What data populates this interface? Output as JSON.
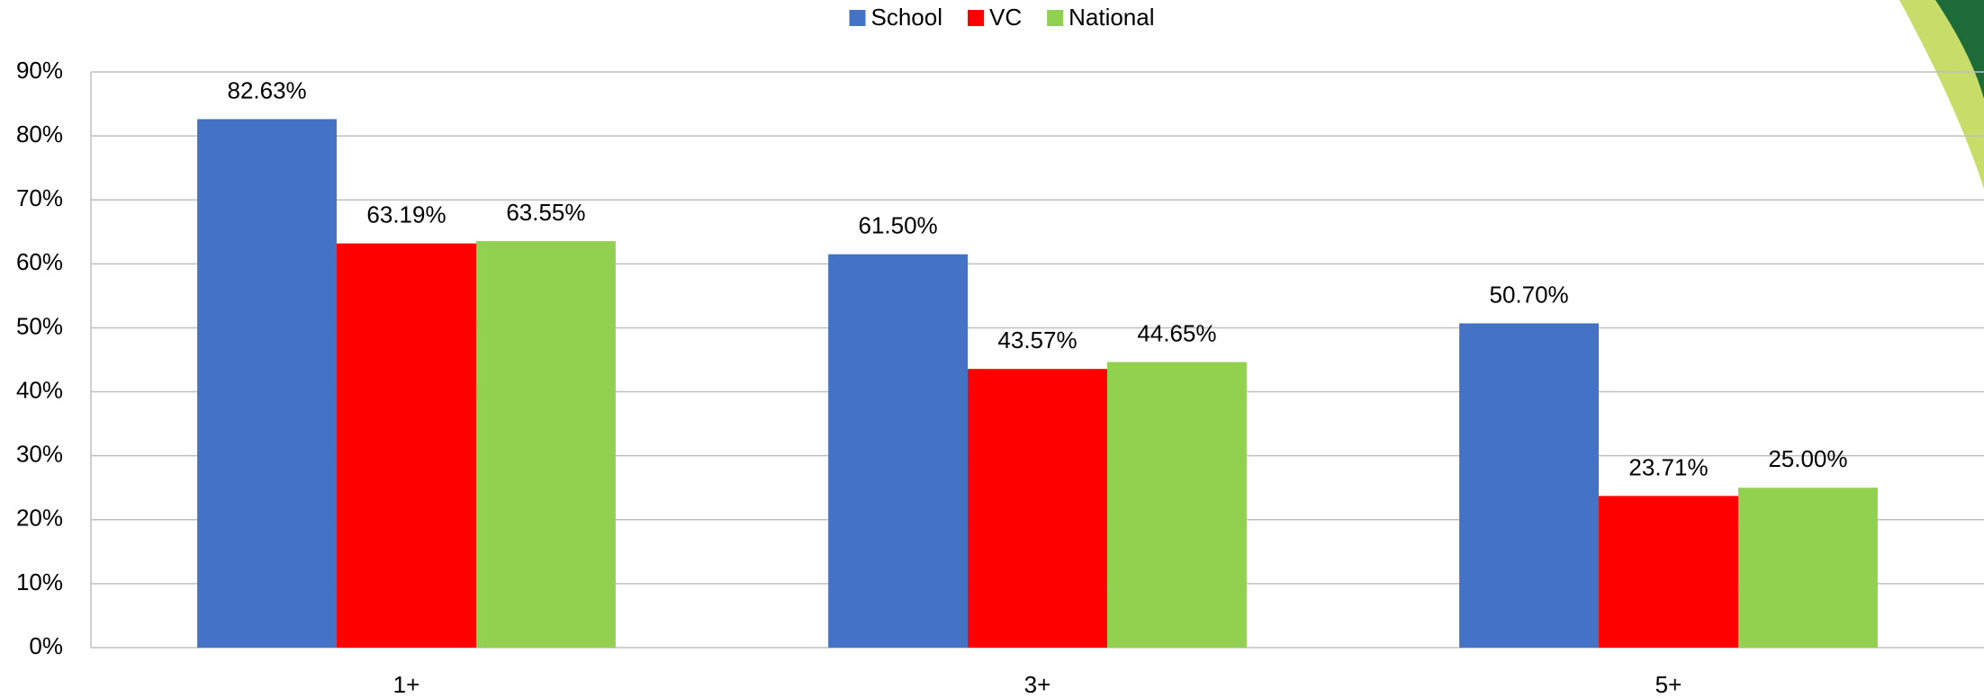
{
  "chart_data": {
    "type": "bar",
    "categories": [
      "1+",
      "3+",
      "5+"
    ],
    "series": [
      {
        "name": "School",
        "color": "#4472c4",
        "values": [
          82.63,
          61.5,
          50.7
        ],
        "value_labels": [
          "82.63%",
          "61.50%",
          "50.70%"
        ]
      },
      {
        "name": "VC",
        "color": "#ff0000",
        "values": [
          63.19,
          43.57,
          23.71
        ],
        "value_labels": [
          "63.19%",
          "43.57%",
          "23.71%"
        ]
      },
      {
        "name": "National",
        "color": "#92d050",
        "values": [
          63.55,
          44.65,
          25.0
        ],
        "value_labels": [
          "63.55%",
          "44.65%",
          "25.00%"
        ]
      }
    ],
    "ylim": [
      0,
      90
    ],
    "yticks": [
      {
        "value": 0,
        "label": "0%"
      },
      {
        "value": 10,
        "label": "10%"
      },
      {
        "value": 20,
        "label": "20%"
      },
      {
        "value": 30,
        "label": "30%"
      },
      {
        "value": 40,
        "label": "40%"
      },
      {
        "value": 50,
        "label": "50%"
      },
      {
        "value": 60,
        "label": "60%"
      },
      {
        "value": 70,
        "label": "70%"
      },
      {
        "value": 80,
        "label": "80%"
      },
      {
        "value": 90,
        "label": "90%"
      }
    ],
    "grid": true,
    "legend": "top"
  }
}
